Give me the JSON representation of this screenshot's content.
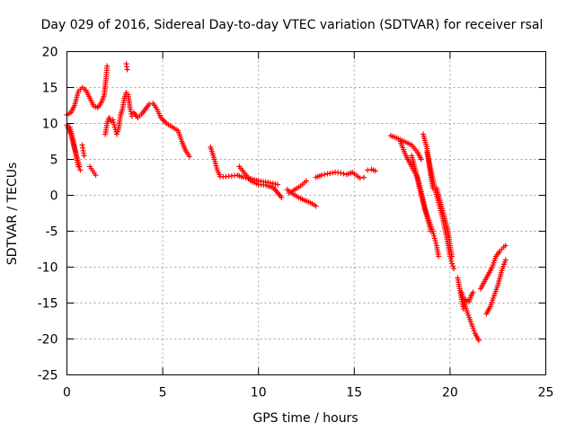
{
  "chart_data": {
    "type": "scatter",
    "title": "Day 029 of 2016, Sidereal Day-to-day VTEC variation (SDTVAR) for receiver rsal",
    "xlabel": "GPS time / hours",
    "ylabel": "SDTVAR / TECUs",
    "xlim": [
      0,
      25
    ],
    "ylim": [
      -25,
      20
    ],
    "xticks": [
      "0",
      "5",
      "10",
      "15",
      "20",
      "25"
    ],
    "yticks": [
      "20",
      "15",
      "10",
      "5",
      "0",
      "-5",
      "-10",
      "-15",
      "-20",
      "-25"
    ],
    "grid": true,
    "marker": "+",
    "colors": {
      "points": "#ff0000",
      "grid": "#a0a0a0",
      "frame": "#000000"
    },
    "series": [
      {
        "segments": [
          {
            "points": [
              [
                0.0,
                11.2
              ],
              [
                0.2,
                11.5
              ],
              [
                0.4,
                12.5
              ],
              [
                0.6,
                14.5
              ],
              [
                0.8,
                15.0
              ],
              [
                1.0,
                14.6
              ],
              [
                1.2,
                13.5
              ],
              [
                1.4,
                12.4
              ],
              [
                1.6,
                12.2
              ],
              [
                1.8,
                12.9
              ],
              [
                1.95,
                14.0
              ],
              [
                2.05,
                16.5
              ],
              [
                2.1,
                18.0
              ]
            ]
          },
          {
            "points": [
              [
                0.0,
                9.8
              ],
              [
                0.2,
                8.5
              ],
              [
                0.35,
                7.0
              ],
              [
                0.5,
                5.5
              ],
              [
                0.65,
                4.0
              ],
              [
                0.7,
                3.5
              ]
            ]
          },
          {
            "points": [
              [
                0.15,
                9.5
              ],
              [
                0.3,
                8.0
              ],
              [
                0.45,
                6.0
              ],
              [
                0.6,
                4.0
              ]
            ]
          },
          {
            "points": [
              [
                0.8,
                7.0
              ],
              [
                0.85,
                6.2
              ],
              [
                0.9,
                5.5
              ]
            ]
          },
          {
            "points": [
              [
                1.2,
                4.0
              ],
              [
                1.35,
                3.4
              ],
              [
                1.5,
                2.8
              ]
            ]
          },
          {
            "points": [
              [
                2.0,
                8.5
              ],
              [
                2.1,
                10.0
              ],
              [
                2.2,
                10.8
              ],
              [
                2.3,
                10.3
              ]
            ]
          },
          {
            "points": [
              [
                2.4,
                10.5
              ],
              [
                2.5,
                9.5
              ],
              [
                2.6,
                8.5
              ],
              [
                2.7,
                9.2
              ],
              [
                2.8,
                11.2
              ],
              [
                2.9,
                12.0
              ],
              [
                3.0,
                13.5
              ],
              [
                3.1,
                14.3
              ],
              [
                3.2,
                14.0
              ],
              [
                3.3,
                12.0
              ],
              [
                3.4,
                11.0
              ]
            ]
          },
          {
            "points": [
              [
                3.1,
                18.3
              ],
              [
                3.15,
                17.5
              ]
            ]
          },
          {
            "points": [
              [
                3.5,
                11.5
              ],
              [
                3.7,
                10.8
              ],
              [
                3.9,
                11.3
              ],
              [
                4.1,
                12.0
              ],
              [
                4.3,
                12.7
              ],
              [
                4.5,
                12.8
              ],
              [
                4.7,
                12.0
              ],
              [
                4.9,
                10.8
              ],
              [
                5.2,
                10.0
              ],
              [
                5.5,
                9.5
              ],
              [
                5.8,
                9.0
              ],
              [
                6.0,
                7.5
              ],
              [
                6.2,
                6.2
              ],
              [
                6.4,
                5.4
              ]
            ]
          },
          {
            "points": [
              [
                7.5,
                6.7
              ],
              [
                7.7,
                5.0
              ],
              [
                7.85,
                3.5
              ],
              [
                8.0,
                2.6
              ],
              [
                8.3,
                2.6
              ],
              [
                8.6,
                2.7
              ],
              [
                8.9,
                2.8
              ],
              [
                9.2,
                2.5
              ],
              [
                9.6,
                2.3
              ],
              [
                10.0,
                2.0
              ],
              [
                10.5,
                1.8
              ],
              [
                11.0,
                1.5
              ]
            ]
          },
          {
            "points": [
              [
                9.0,
                4.0
              ],
              [
                9.3,
                3.0
              ],
              [
                9.6,
                2.0
              ],
              [
                10.0,
                1.5
              ],
              [
                10.4,
                1.4
              ],
              [
                10.8,
                1.0
              ],
              [
                11.2,
                -0.3
              ]
            ]
          },
          {
            "points": [
              [
                11.5,
                0.8
              ],
              [
                11.8,
                0.2
              ],
              [
                12.1,
                -0.3
              ],
              [
                12.4,
                -0.7
              ],
              [
                12.7,
                -1.0
              ],
              [
                13.0,
                -1.5
              ]
            ]
          },
          {
            "points": [
              [
                11.6,
                0.3
              ],
              [
                11.9,
                0.8
              ],
              [
                12.2,
                1.3
              ],
              [
                12.5,
                2.0
              ]
            ]
          },
          {
            "points": [
              [
                13.0,
                2.5
              ],
              [
                13.3,
                2.8
              ],
              [
                13.6,
                3.0
              ],
              [
                14.0,
                3.2
              ],
              [
                14.3,
                3.1
              ],
              [
                14.6,
                2.9
              ],
              [
                14.9,
                3.2
              ],
              [
                15.1,
                2.8
              ],
              [
                15.3,
                2.4
              ],
              [
                15.5,
                2.5
              ]
            ]
          },
          {
            "points": [
              [
                15.7,
                3.5
              ],
              [
                15.9,
                3.6
              ],
              [
                16.1,
                3.4
              ]
            ]
          },
          {
            "points": [
              [
                16.9,
                8.3
              ],
              [
                17.2,
                8.0
              ],
              [
                17.6,
                7.5
              ],
              [
                18.0,
                7.0
              ],
              [
                18.3,
                6.0
              ],
              [
                18.5,
                5.0
              ]
            ]
          },
          {
            "points": [
              [
                17.4,
                7.5
              ],
              [
                17.7,
                5.5
              ],
              [
                18.0,
                4.0
              ],
              [
                18.3,
                2.5
              ],
              [
                18.5,
                0.5
              ],
              [
                18.7,
                -2.0
              ],
              [
                18.9,
                -3.5
              ],
              [
                19.1,
                -5.0
              ],
              [
                19.2,
                -6.0
              ],
              [
                19.3,
                -7.0
              ],
              [
                19.4,
                -8.5
              ]
            ]
          },
          {
            "points": [
              [
                18.0,
                5.5
              ],
              [
                18.2,
                3.5
              ],
              [
                18.4,
                1.0
              ],
              [
                18.6,
                -1.0
              ],
              [
                18.8,
                -3.0
              ],
              [
                19.0,
                -5.0
              ]
            ]
          },
          {
            "points": [
              [
                18.6,
                8.5
              ],
              [
                18.8,
                6.5
              ],
              [
                18.9,
                4.5
              ],
              [
                19.0,
                2.5
              ],
              [
                19.1,
                1.0
              ]
            ]
          },
          {
            "points": [
              [
                18.8,
                6.0
              ],
              [
                19.0,
                3.5
              ],
              [
                19.2,
                1.0
              ],
              [
                19.4,
                -1.0
              ],
              [
                19.6,
                -3.0
              ],
              [
                19.8,
                -5.5
              ],
              [
                19.9,
                -7.0
              ],
              [
                20.0,
                -8.5
              ],
              [
                20.1,
                -9.5
              ],
              [
                20.2,
                -10.2
              ]
            ]
          },
          {
            "points": [
              [
                19.3,
                1.0
              ],
              [
                19.5,
                -1.0
              ],
              [
                19.7,
                -3.0
              ],
              [
                19.9,
                -5.0
              ],
              [
                20.0,
                -7.0
              ],
              [
                20.1,
                -8.5
              ]
            ]
          },
          {
            "points": [
              [
                20.4,
                -11.5
              ],
              [
                20.5,
                -13.0
              ],
              [
                20.6,
                -14.5
              ],
              [
                20.7,
                -15.8
              ],
              [
                20.8,
                -14.5
              ],
              [
                21.0,
                -14.8
              ],
              [
                21.1,
                -14.0
              ],
              [
                21.2,
                -13.5
              ]
            ]
          },
          {
            "points": [
              [
                20.6,
                -13.5
              ],
              [
                20.8,
                -15.5
              ],
              [
                21.0,
                -17.0
              ],
              [
                21.2,
                -18.5
              ],
              [
                21.3,
                -19.2
              ],
              [
                21.4,
                -19.7
              ],
              [
                21.5,
                -20.2
              ]
            ]
          },
          {
            "points": [
              [
                21.6,
                -13.0
              ],
              [
                21.8,
                -12.0
              ],
              [
                22.0,
                -11.0
              ],
              [
                22.2,
                -10.0
              ],
              [
                22.4,
                -8.5
              ],
              [
                22.6,
                -7.8
              ],
              [
                22.8,
                -7.2
              ],
              [
                22.9,
                -7.0
              ]
            ]
          },
          {
            "points": [
              [
                21.9,
                -16.5
              ],
              [
                22.1,
                -15.5
              ],
              [
                22.3,
                -14.0
              ],
              [
                22.5,
                -12.5
              ],
              [
                22.7,
                -10.5
              ],
              [
                22.9,
                -9.0
              ]
            ]
          }
        ]
      }
    ]
  }
}
